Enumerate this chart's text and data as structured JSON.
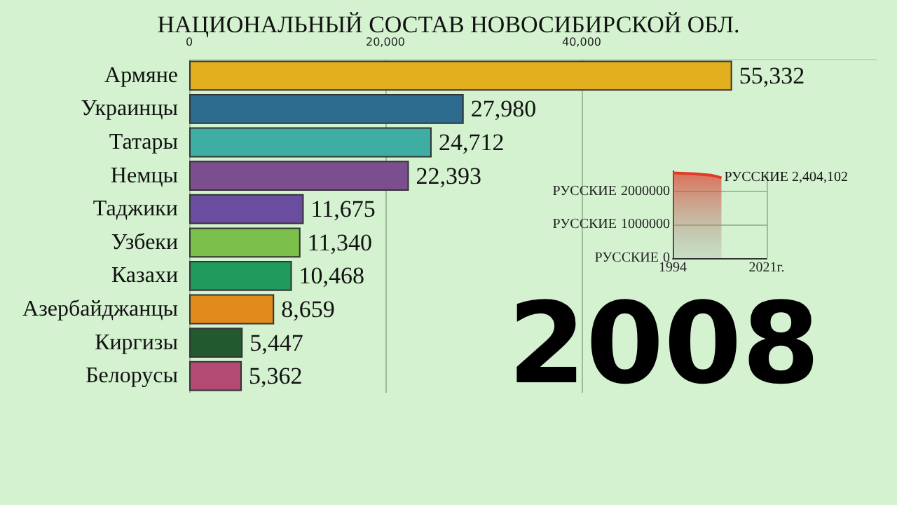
{
  "chart_data": [
    {
      "type": "bar",
      "orientation": "horizontal",
      "title": "НАЦИОНАЛЬНЫЙ СОСТАВ НОВОСИБИРСКОЙ ОБЛ.",
      "categories": [
        "Армяне",
        "Украинцы",
        "Татары",
        "Немцы",
        "Таджики",
        "Узбеки",
        "Казахи",
        "Азербайджанцы",
        "Киргизы",
        "Белорусы"
      ],
      "values": [
        55332,
        27980,
        24712,
        22393,
        11675,
        11340,
        10468,
        8659,
        5447,
        5362
      ],
      "colors": [
        "#e2b01e",
        "#2d6b8f",
        "#3eada3",
        "#7b4f8f",
        "#6a4d9e",
        "#7dbf4b",
        "#1f9a5c",
        "#e08b1c",
        "#22592f",
        "#b24a72"
      ],
      "xlim": [
        0,
        70000
      ],
      "xticks": [
        0,
        {
          "value": 20000,
          "label": "20,000"
        },
        {
          "value": 40000,
          "label": "40,000"
        }
      ],
      "value_labels": [
        "55,332",
        "27,980",
        "24,712",
        "22,393",
        "11,675",
        "11,340",
        "10,468",
        "8,659",
        "5,447",
        "5,362"
      ],
      "grid": "x",
      "annotations": [
        "2008"
      ]
    },
    {
      "type": "area",
      "x": [
        1994,
        2000,
        2005,
        2008
      ],
      "series": [
        {
          "name": "РУССКИЕ",
          "color": "#e03a28",
          "values": [
            2550000,
            2520000,
            2480000,
            2404102
          ],
          "value_labels": [
            null,
            null,
            null,
            "2,404,102"
          ]
        }
      ],
      "xlim": [
        1994,
        2021
      ],
      "xticks": [
        1994,
        {
          "value": 2021,
          "label": "2021г."
        }
      ],
      "ylim": [
        0,
        2600000
      ],
      "yticks": [
        0,
        1000000,
        2000000
      ],
      "grid": true
    }
  ]
}
